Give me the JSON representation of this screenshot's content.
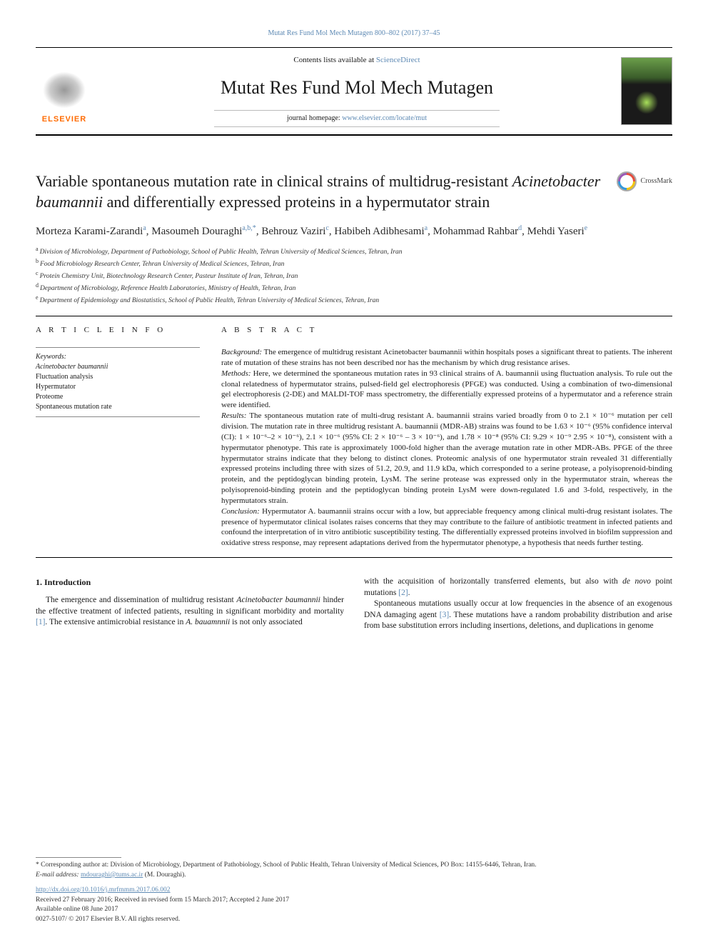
{
  "header": {
    "journal_ref": "Mutat Res Fund Mol Mech Mutagen 800–802 (2017) 37–45",
    "contents_lists_pre": "Contents lists available at ",
    "contents_lists_link": "ScienceDirect",
    "journal_title": "Mutat Res Fund Mol Mech Mutagen",
    "homepage_pre": "journal homepage: ",
    "homepage_link": "www.elsevier.com/locate/mut",
    "elsevier_label": "ELSEVIER"
  },
  "crossmark_label": "CrossMark",
  "title": {
    "line1_pre": "Variable spontaneous mutation rate in clinical strains of multidrug-resistant ",
    "ital1": "Acinetobacter baumannii",
    "line1_post": " and differentially expressed proteins in a hypermutator strain"
  },
  "authors_html": "Morteza Karami-Zarandi<sup>a</sup>, Masoumeh Douraghi<sup>a,b,*</sup>, Behrouz Vaziri<sup>c</sup>, Habibeh Adibhesami<sup>a</sup>, Mohammad Rahbar<sup>d</sup>, Mehdi Yaseri<sup>e</sup>",
  "affiliations": [
    {
      "sup": "a",
      "text": "Division of Microbiology, Department of Pathobiology, School of Public Health, Tehran University of Medical Sciences, Tehran, Iran"
    },
    {
      "sup": "b",
      "text": "Food Microbiology Research Center, Tehran University of Medical Sciences, Tehran, Iran"
    },
    {
      "sup": "c",
      "text": "Protein Chemistry Unit, Biotechnology Research Center, Pasteur Institute of Iran, Tehran, Iran"
    },
    {
      "sup": "d",
      "text": "Department of Microbiology, Reference Health Laboratories, Ministry of Health, Tehran, Iran"
    },
    {
      "sup": "e",
      "text": "Department of Epidemiology and Biostatistics, School of Public Health, Tehran University of Medical Sciences, Tehran, Iran"
    }
  ],
  "section_labels": {
    "article_info": "A R T I C L E  I N F O",
    "abstract": "A B S T R A C T"
  },
  "keywords": {
    "heading": "Keywords:",
    "items": [
      "Acinetobacter baumannii",
      "Fluctuation analysis",
      "Hypermutator",
      "Proteome",
      "Spontaneous mutation rate"
    ]
  },
  "abstract": {
    "background_label": "Background:",
    "background": " The emergence of multidrug resistant Acinetobacter baumannii within hospitals poses a significant threat to patients. The inherent rate of mutation of these strains has not been described nor has the mechanism by which drug resistance arises.",
    "methods_label": "Methods:",
    "methods": " Here, we determined the spontaneous mutation rates in 93 clinical strains of A. baumannii using fluctuation analysis. To rule out the clonal relatedness of hypermutator strains, pulsed-field gel electrophoresis (PFGE) was conducted. Using a combination of two-dimensional gel electrophoresis (2-DE) and MALDI-TOF mass spectrometry, the differentially expressed proteins of a hypermutator and a reference strain were identified.",
    "results_label": "Results:",
    "results": " The spontaneous mutation rate of multi-drug resistant A. baumannii strains varied broadly from 0 to 2.1 × 10⁻⁶ mutation per cell division. The mutation rate in three multidrug resistant A. baumannii (MDR-AB) strains was found to be 1.63 × 10⁻⁶ (95% confidence interval (CI): 1 × 10⁻⁶–2 × 10⁻⁶), 2.1 × 10⁻⁶ (95% CI: 2 × 10⁻⁶ – 3 × 10⁻⁶), and 1.78 × 10⁻⁸ (95% CI: 9.29 × 10⁻⁹ 2.95 × 10⁻⁸), consistent with a hypermutator phenotype. This rate is approximately 1000-fold higher than the average mutation rate in other MDR-ABs. PFGE of the three hypermutator strains indicate that they belong to distinct clones. Proteomic analysis of one hypermutator strain revealed 31 differentially expressed proteins including three with sizes of 51.2, 20.9, and 11.9 kDa, which corresponded to a serine protease, a polyisoprenoid-binding protein, and the peptidoglycan binding protein, LysM. The serine protease was expressed only in the hypermutator strain, whereas the polyisoprenoid-binding protein and the peptidoglycan binding protein LysM were down-regulated 1.6 and 3-fold, respectively, in the hypermutators strain.",
    "conclusion_label": "Conclusion:",
    "conclusion": " Hypermutator A. baumannii strains occur with a low, but appreciable frequency among clinical multi-drug resistant isolates. The presence of hypermutator clinical isolates raises concerns that they may contribute to the failure of antibiotic treatment in infected patients and confound the interpretation of in vitro antibiotic susceptibility testing. The differentially expressed proteins involved in biofilm suppression and oxidative stress response, may represent adaptations derived from the hypermutator phenotype, a hypothesis that needs further testing."
  },
  "body": {
    "intro_heading": "1. Introduction",
    "left_para": "The emergence and dissemination of multidrug resistant Acinetobacter baumannii hinder the effective treatment of infected patients, resulting in significant morbidity and mortality [1]. The extensive antimicrobial resistance in A. bauamnnii is not only associated",
    "right_para1": "with the acquisition of horizontally transferred elements, but also with de novo point mutations [2].",
    "right_para2": "Spontaneous mutations usually occur at low frequencies in the absence of an exogenous DNA damaging agent [3]. These mutations have a random probability distribution and arise from base substitution errors including insertions, deletions, and duplications in genome"
  },
  "footnotes": {
    "corr": "* Corresponding author at: Division of Microbiology, Department of Pathobiology, School of Public Health, Tehran University of Medical Sciences, PO Box: 14155-6446, Tehran, Iran.",
    "email_label": "E-mail address: ",
    "email": "mdouraghi@tums.ac.ir",
    "email_post": " (M. Douraghi).",
    "doi": "http://dx.doi.org/10.1016/j.mrfmmm.2017.06.002",
    "received": "Received 27 February 2016; Received in revised form 15 March 2017; Accepted 2 June 2017",
    "online": "Available online 08 June 2017",
    "copyright": "0027-5107/ © 2017 Elsevier B.V. All rights reserved."
  },
  "colors": {
    "link": "#5e8ab4",
    "elsevier_orange": "#ff6b00",
    "text": "#1a1a1a",
    "rule": "#000000"
  }
}
